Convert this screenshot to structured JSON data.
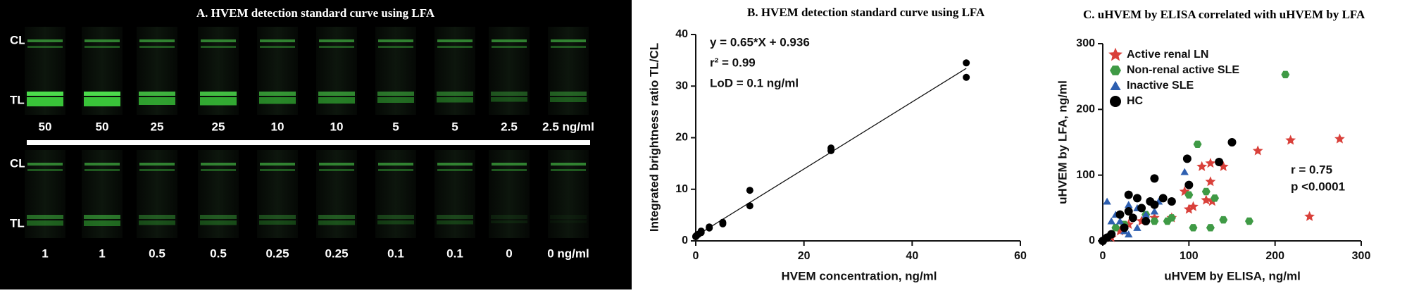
{
  "gel": {
    "title": "A. HVEM detection standard curve using LFA",
    "row_labels": [
      "CL",
      "TL"
    ],
    "rows": [
      [
        "50",
        "50",
        "25",
        "25",
        "10",
        "10",
        "5",
        "5",
        "2.5",
        "2.5 ng/ml"
      ],
      [
        "1",
        "1",
        "0.5",
        "0.5",
        "0.25",
        "0.25",
        "0.1",
        "0.1",
        "0",
        "0 ng/ml"
      ]
    ]
  },
  "chart_data": [
    {
      "type": "scatter",
      "title": "B. HVEM detection standard curve using LFA",
      "x_label": "HVEM concentration, ng/ml",
      "y_label": "Integrated brightness ratio TL/CL",
      "x": [
        0,
        0,
        0.1,
        0.25,
        0.5,
        1,
        1,
        2.5,
        2.5,
        5,
        5,
        10,
        10,
        25,
        25,
        50,
        50
      ],
      "values": [
        0.8,
        0.9,
        1.0,
        1.1,
        1.3,
        1.6,
        1.9,
        2.5,
        2.7,
        3.3,
        3.6,
        6.8,
        9.8,
        17.5,
        18,
        31.7,
        34.5
      ],
      "color": "#000000",
      "fit_line": {
        "x": [
          0,
          50
        ],
        "values": [
          0.936,
          33.436
        ]
      },
      "annotations": [
        "y = 0.65*X + 0.936",
        "r² = 0.99",
        "LoD = 0.1 ng/ml"
      ],
      "xlim": [
        0,
        60
      ],
      "xticks": [
        0,
        20,
        40,
        60
      ],
      "ylim": [
        0,
        40
      ],
      "yticks": [
        0,
        10,
        20,
        30,
        40
      ]
    },
    {
      "type": "scatter",
      "title": "C. uHVEM by ELISA correlated with uHVEM by LFA",
      "x_label": "uHVEM by ELISA, ng/ml",
      "y_label": "uHVEM by LFA, ng/ml",
      "legend": "top-left",
      "series": [
        {
          "name": "Active renal LN",
          "color": "#d9403a",
          "marker": "star",
          "x": [
            275,
            218,
            180,
            240,
            140,
            125,
            115,
            125,
            120,
            127,
            100,
            105,
            95,
            80,
            60,
            45,
            30,
            20,
            10
          ],
          "values": [
            155,
            153,
            137,
            37,
            113,
            118,
            113,
            90,
            62,
            60,
            48,
            52,
            75,
            35,
            35,
            30,
            25,
            15,
            5
          ]
        },
        {
          "name": "Non-renal active SLE",
          "color": "#3f9a45",
          "marker": "hexagon",
          "x": [
            212,
            110,
            130,
            140,
            170,
            125,
            105,
            80,
            75,
            120,
            100,
            60,
            50,
            25,
            15
          ],
          "values": [
            253,
            147,
            65,
            32,
            30,
            20,
            20,
            35,
            30,
            75,
            70,
            30,
            40,
            25,
            20
          ]
        },
        {
          "name": "Inactive SLE",
          "color": "#2e5fb0",
          "marker": "triangle",
          "x": [
            5,
            10,
            20,
            25,
            30,
            40,
            50,
            60,
            65,
            95,
            40,
            15,
            5,
            30
          ],
          "values": [
            60,
            30,
            30,
            15,
            10,
            20,
            40,
            45,
            60,
            105,
            50,
            40,
            5,
            55
          ]
        },
        {
          "name": "HC",
          "color": "#000000",
          "marker": "circle",
          "x": [
            150,
            135,
            98,
            60,
            100,
            70,
            55,
            40,
            30,
            20,
            30,
            45,
            60,
            50,
            10,
            5,
            0,
            80,
            35,
            25
          ],
          "values": [
            150,
            120,
            125,
            95,
            85,
            65,
            60,
            65,
            70,
            40,
            45,
            50,
            55,
            30,
            10,
            5,
            0,
            60,
            35,
            20
          ]
        }
      ],
      "annotations": [
        "r = 0.75",
        "p <0.0001"
      ],
      "xlim": [
        0,
        300
      ],
      "xticks": [
        0,
        100,
        200,
        300
      ],
      "ylim": [
        0,
        300
      ],
      "yticks": [
        0,
        100,
        200,
        300
      ]
    }
  ]
}
